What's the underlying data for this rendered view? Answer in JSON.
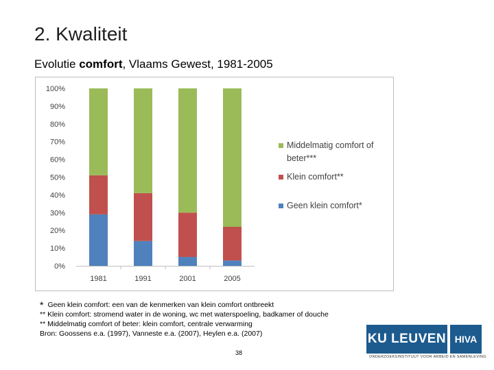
{
  "slide": {
    "title": "2. Kwaliteit",
    "subtitle_pre": "Evolutie ",
    "subtitle_bold": "comfort",
    "subtitle_post": ", Vlaams Gewest, 1981-2005",
    "page_number": "38"
  },
  "footnotes": {
    "star": "*",
    "line1": "Geen klein comfort: een van de kenmerken van klein comfort ontbreekt",
    "line2": "** Klein comfort: stromend water in de woning, wc met waterspoeling, badkamer of douche",
    "line3": "** Middelmatig comfort of beter: klein comfort, centrale verwarming",
    "line4": "Bron:  Goossens e.a. (1997), Vanneste e.a. (2007), Heylen e.a. (2007)"
  },
  "logos": {
    "ku_leuven": "KU LEUVEN",
    "hiva": "HIVA",
    "tagline": "ONDERZOEKSINSTITUUT VOOR ARBEID EN SAMENLEVING"
  },
  "chart_data": {
    "type": "bar",
    "stacked": true,
    "categories": [
      "1981",
      "1991",
      "2001",
      "2005"
    ],
    "series": [
      {
        "name": "Geen klein comfort*",
        "color": "#4f81bd",
        "values": [
          29,
          14,
          5,
          3
        ]
      },
      {
        "name": "Klein comfort**",
        "color": "#c0504d",
        "values": [
          22,
          27,
          25,
          19
        ]
      },
      {
        "name": "Middelmatig comfort of beter***",
        "color": "#9bbb59",
        "values": [
          49,
          59,
          70,
          78
        ]
      }
    ],
    "yticks": [
      "0%",
      "10%",
      "20%",
      "30%",
      "40%",
      "50%",
      "60%",
      "70%",
      "80%",
      "90%",
      "100%"
    ],
    "ylim": [
      0,
      100
    ],
    "legend_position": "right",
    "grid": false
  }
}
